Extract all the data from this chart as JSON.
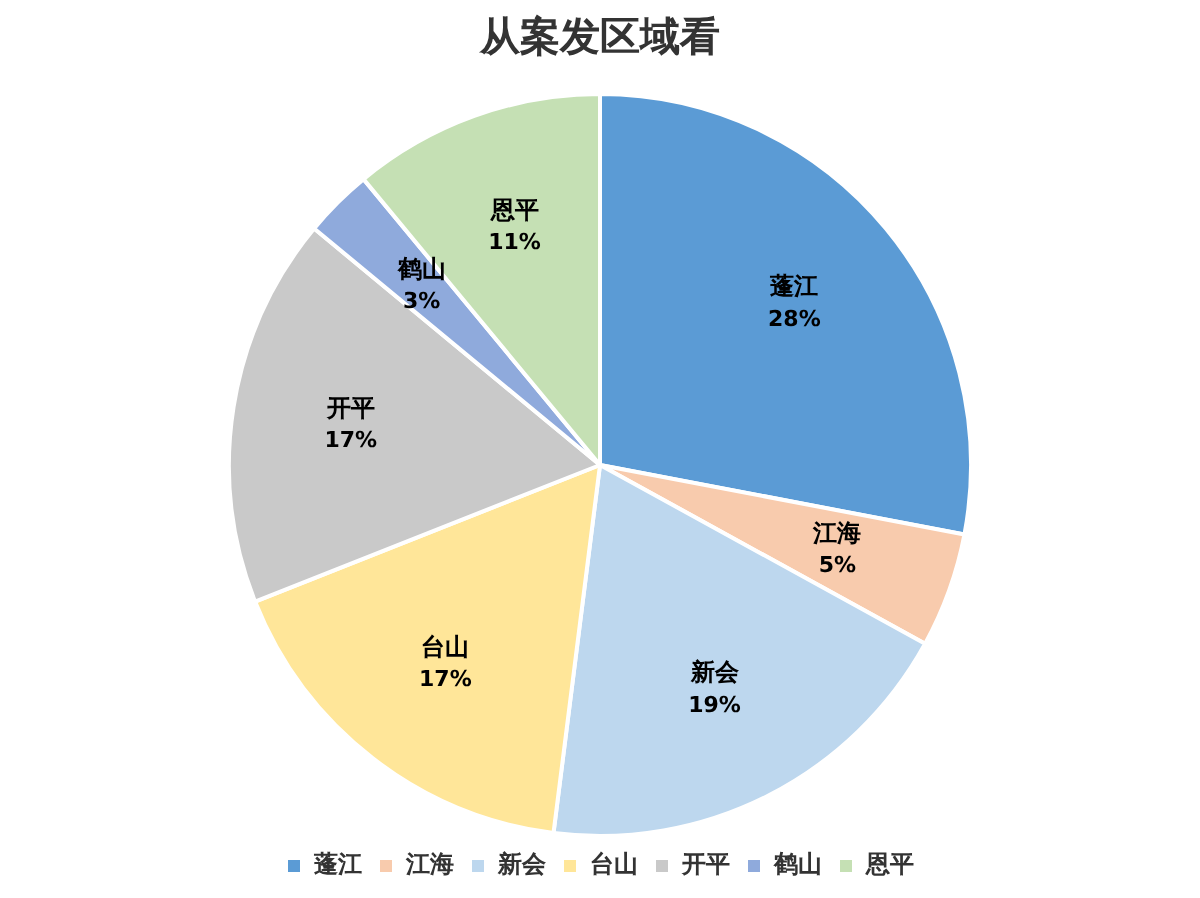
{
  "chart_data": {
    "type": "pie",
    "title": "从案发区域看",
    "categories": [
      "蓬江",
      "江海",
      "新会",
      "台山",
      "开平",
      "鹤山",
      "恩平"
    ],
    "values": [
      28,
      5,
      19,
      17,
      17,
      3,
      11
    ],
    "value_labels": [
      "28%",
      "5%",
      "19%",
      "17%",
      "17%",
      "3%",
      "11%"
    ],
    "colors": [
      "#5b9bd5",
      "#f8cbad",
      "#bdd7ee",
      "#ffe699",
      "#c9c9c9",
      "#8faadc",
      "#c5e0b4"
    ],
    "legend": "bottom"
  }
}
